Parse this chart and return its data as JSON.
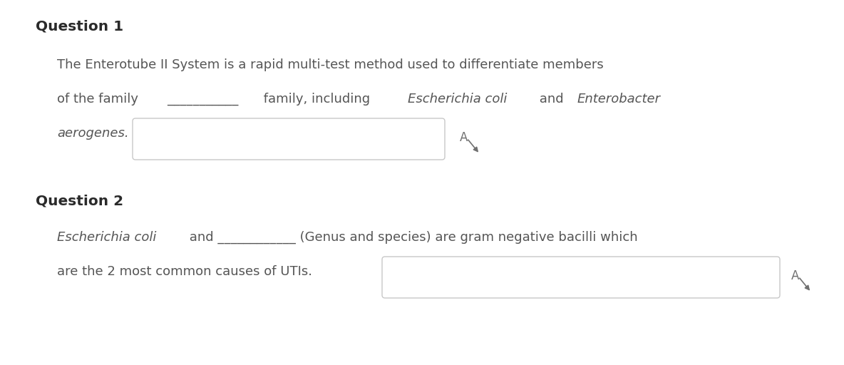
{
  "background_color": "#ffffff",
  "q1_label": "Question 1",
  "q1_line1": "The Enterotube II System is a rapid multi-test method used to differentiate members",
  "q1_line2_normal1": "of the family ",
  "q1_line2_blank": "___________",
  "q1_line2_normal2": " family, including ",
  "q1_line2_italic1": "Escherichia coli",
  "q1_line2_normal3": " and ",
  "q1_line2_italic2": "Enterobacter",
  "q1_line3_italic": "aerogenes.",
  "q2_label": "Question 2",
  "q2_line1_italic": "Escherichia coli",
  "q2_line1_normal": " and ____________ (Genus and species) are gram negative bacilli which",
  "q2_line2": "are the 2 most common causes of UTIs.",
  "text_color": "#555555",
  "heading_color": "#2a2a2a",
  "box_edge_color": "#c8c8c8",
  "font_size_heading": 14.5,
  "font_size_body": 13.0
}
